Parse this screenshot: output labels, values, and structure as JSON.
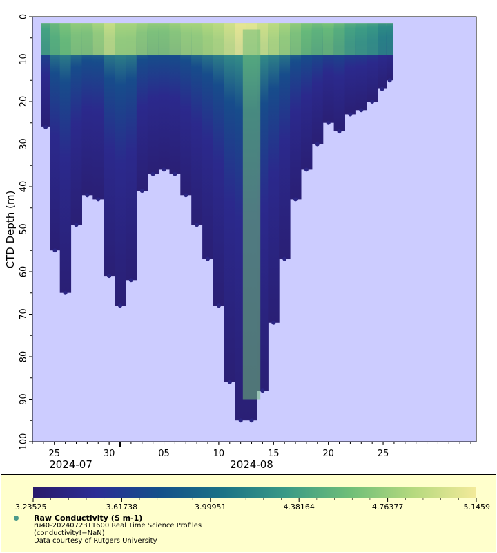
{
  "chart_data": {
    "type": "scatter",
    "title": "ru40-20240723T1600 Real Time Science Profiles",
    "ylabel": "CTD Depth (m)",
    "xlabel": "",
    "y_axis_inverted": true,
    "ylim": [
      0,
      100
    ],
    "y_ticks": [
      0,
      10,
      20,
      30,
      40,
      50,
      60,
      70,
      80,
      90,
      100
    ],
    "x_range_days": [
      -8.0,
      32.5
    ],
    "x_ticks": [
      {
        "day": -6,
        "label": "25"
      },
      {
        "day": -1,
        "label": "30"
      },
      {
        "day": 4,
        "label": "05"
      },
      {
        "day": 9,
        "label": "10"
      },
      {
        "day": 14,
        "label": "15"
      },
      {
        "day": 19,
        "label": "20"
      },
      {
        "day": 24,
        "label": "25"
      }
    ],
    "x_month_labels": [
      {
        "day": -4.5,
        "label": "2024-07"
      },
      {
        "day": 12,
        "label": "2024-08"
      }
    ],
    "x_month_boundary_day": 0,
    "colorbar": {
      "variable": "Raw Conductivity (S m-1)",
      "min": 3.23525,
      "max": 5.1459,
      "tick_labels": [
        "3.23525",
        "3.61738",
        "3.99951",
        "4.38164",
        "4.76377",
        "5.1459"
      ],
      "colormap": [
        "#2a1b6b",
        "#2b2d95",
        "#14508a",
        "#1b7386",
        "#3a9a86",
        "#6fbe78",
        "#b5d97e",
        "#f3ea9a"
      ]
    },
    "series": [
      {
        "name": "Raw Conductivity (S m-1)",
        "note": "max profile depth (m) per deployment day, from 2024-07-23 onward",
        "day": [
          -6.8,
          -6.0,
          -5.0,
          -4.0,
          -3.0,
          -2.0,
          -1.0,
          0.0,
          1.0,
          2.0,
          3.0,
          4.0,
          5.0,
          6.0,
          7.0,
          8.0,
          9.0,
          10.0,
          11.0,
          12.0,
          13.0,
          14.0,
          15.0,
          16.0,
          17.0,
          18.0,
          19.0,
          20.0,
          21.0,
          22.0,
          23.0,
          24.0,
          24.6
        ],
        "max_depth": [
          26,
          55,
          65,
          49,
          42,
          43,
          61,
          68,
          62,
          41,
          37,
          36,
          37,
          42,
          49,
          57,
          68,
          86,
          95,
          95,
          88,
          72,
          57,
          43,
          36,
          30,
          25,
          27,
          23,
          22,
          20,
          17,
          15
        ],
        "surface_conductivity": [
          4.4,
          4.5,
          4.6,
          4.7,
          4.7,
          4.8,
          4.95,
          4.8,
          4.8,
          4.75,
          4.7,
          4.7,
          4.75,
          4.8,
          4.8,
          4.85,
          4.9,
          5.0,
          5.12,
          5.1,
          5.0,
          4.9,
          4.8,
          4.7,
          4.6,
          4.55,
          4.6,
          4.5,
          4.4,
          4.35,
          4.3,
          4.2,
          4.2
        ]
      }
    ]
  },
  "legend": {
    "variable_label": "Raw Conductivity (S m-1)",
    "dataset_title": "ru40-20240723T1600 Real Time Science Profiles",
    "constraint": "(conductivity!=NaN)",
    "credit": "Data courtesy of Rutgers University"
  }
}
